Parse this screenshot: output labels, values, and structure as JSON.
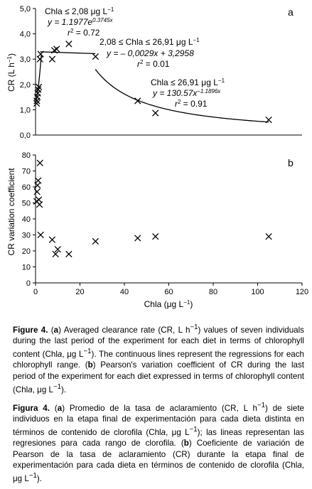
{
  "chart_data": [
    {
      "panel": "a",
      "type": "scatter",
      "ylabel_parts": [
        "CR (L h",
        "−1",
        ")"
      ],
      "yticks": [
        "0,0",
        "1,0",
        "2,0",
        "3,0",
        "4,0",
        "5,0"
      ],
      "ylim": [
        0,
        5
      ],
      "xlim": [
        0,
        120
      ],
      "grid": false,
      "points": [
        [
          0.5,
          1.25
        ],
        [
          0.6,
          1.35
        ],
        [
          0.8,
          1.5
        ],
        [
          1.0,
          1.65
        ],
        [
          1.2,
          1.8
        ],
        [
          1.5,
          1.9
        ],
        [
          2.0,
          3.0
        ],
        [
          2.3,
          3.2
        ],
        [
          7.5,
          3.0
        ],
        [
          8.5,
          3.35
        ],
        [
          9.5,
          3.4
        ],
        [
          15,
          3.6
        ],
        [
          27,
          3.1
        ],
        [
          46,
          1.35
        ],
        [
          54,
          0.87
        ],
        [
          105,
          0.6
        ]
      ],
      "fits": [
        {
          "range": "Chla ≤ 2,08 μg L",
          "range_sup": "−1",
          "eq_pre": "y = 1.1977e",
          "eq_sup": "0.3745x",
          "r2_label": "r",
          "r2_value": " = 0.72",
          "a": 1.1977,
          "b": 0.3745,
          "kind": "exp",
          "xmin": 0.3,
          "xmax": 2.6
        },
        {
          "range": "2,08 ≤ Chla ≤ 26,91 μg L",
          "range_sup": "−1",
          "eq": "y = – 0,0029x + 3,2958",
          "r2_label": "r",
          "r2_value": " = 0.01",
          "a": -0.0029,
          "b": 3.2958,
          "kind": "linear",
          "xmin": 2.08,
          "xmax": 26.91
        },
        {
          "range": "Chla ≤ 26,91 μg L",
          "range_sup": "−1",
          "eq_pre": "y = 130.57x",
          "eq_sup": "–1.1896x",
          "r2_label": "r",
          "r2_value": " = 0.91",
          "a": 130.57,
          "b": -1.1896,
          "kind": "power",
          "xmin": 26.91,
          "xmax": 105
        }
      ]
    },
    {
      "panel": "b",
      "type": "scatter",
      "ylabel": "CR variation coefficient",
      "xlabel_parts": [
        "Chla (μg L",
        "−1",
        ")"
      ],
      "yticks": [
        "0",
        "10",
        "20",
        "30",
        "40",
        "50",
        "60",
        "70",
        "80"
      ],
      "xticks": [
        "0",
        "20",
        "40",
        "60",
        "80",
        "100",
        "120"
      ],
      "ylim": [
        0,
        80
      ],
      "xlim": [
        0,
        120
      ],
      "grid": false,
      "points": [
        [
          0.5,
          51
        ],
        [
          0.7,
          57
        ],
        [
          0.9,
          61
        ],
        [
          1.2,
          64
        ],
        [
          1.5,
          52
        ],
        [
          1.8,
          49
        ],
        [
          2.0,
          75
        ],
        [
          2.3,
          30
        ],
        [
          7.5,
          27
        ],
        [
          9,
          18
        ],
        [
          10,
          21
        ],
        [
          15,
          18
        ],
        [
          27,
          26
        ],
        [
          46,
          28
        ],
        [
          54,
          29
        ],
        [
          105,
          29
        ]
      ]
    }
  ],
  "caption_en": {
    "fig": "Figure 4.",
    "p1": " (",
    "a": "a",
    "p2": ") Averaged clearance rate (CR, L h",
    "sup1": "−1",
    "p3": ") values of seven individuals during the last period of the experiment for each diet in terms of chlorophyll content (Chl",
    "i1": "a",
    "p4": ", μg L",
    "sup2": "−1",
    "p5": "). The continuous lines represent the regressions for each chlorophyll range. (",
    "b": "b",
    "p6": ") Pearson's variation coefficient of CR during the last period of the experiment for each diet expressed in terms of chlorophyll content (Chl",
    "i2": "a",
    "p7": ", μg L",
    "sup3": "−1",
    "p8": ")."
  },
  "caption_es": {
    "fig": "Figura 4.",
    "p1": " (",
    "a": "a",
    "p2": ") Promedio de la tasa de aclaramiento (CR, L h",
    "sup1": "−1",
    "p3": ") de siete individuos en la etapa final de experimentación para cada dieta distinta en términos de contenido de clorofila (Chl",
    "i1": "a",
    "p4": ", μg L",
    "sup2": "−1",
    "p5": "); las lineas representan las regresiones para cada rango de clorofila. (",
    "b": "b",
    "p6": ") Coeficiente de variación de Pearson de la tasa de aclaramiento (CR) durante la etapa final de experimentación para cada dieta en términos de contenido de clorofila (Chl",
    "i2": "a",
    "p7": ", μg L",
    "sup3": "−1",
    "p8": ")."
  }
}
